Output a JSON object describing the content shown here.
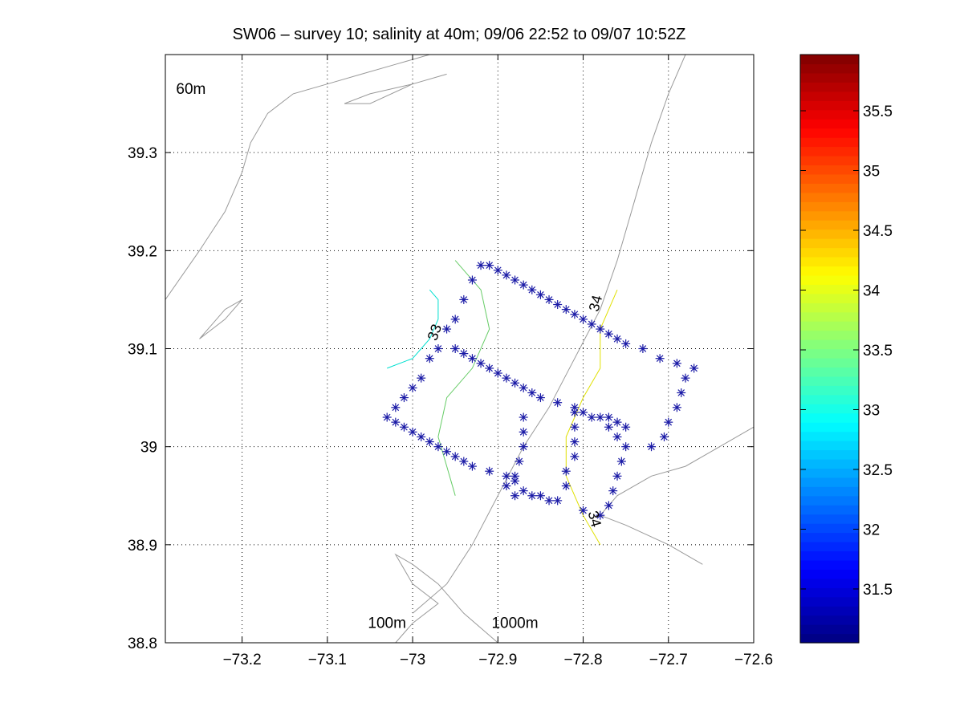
{
  "chart_data": {
    "type": "scatter",
    "title": "SW06 – survey 10; salinity at 40m; 09/06 22:52 to 09/07 10:52Z",
    "xlabel": "",
    "ylabel": "",
    "xlim": [
      -73.29,
      -72.6
    ],
    "ylim": [
      38.8,
      39.4
    ],
    "x_ticks": [
      -73.2,
      -73.1,
      -73.0,
      -72.9,
      -72.8,
      -72.7,
      -72.6
    ],
    "x_tick_labels": [
      "−73.2",
      "−73.1",
      "−73",
      "−72.9",
      "−72.8",
      "−72.7",
      "−72.6"
    ],
    "y_ticks": [
      38.8,
      38.9,
      39.0,
      39.1,
      39.2,
      39.3
    ],
    "y_tick_labels": [
      "38.8",
      "38.9",
      "39",
      "39.1",
      "39.2",
      "39.3"
    ],
    "grid": true,
    "depth_labels": [
      {
        "text": "60m",
        "x": -73.26,
        "y": 39.36
      },
      {
        "text": "100m",
        "x": -73.03,
        "y": 38.815
      },
      {
        "text": "1000m",
        "x": -72.88,
        "y": 38.815
      }
    ],
    "bathymetry": [
      {
        "name": "60m",
        "color": "#999999",
        "points": [
          [
            -73.29,
            39.15
          ],
          [
            -73.25,
            39.2
          ],
          [
            -73.22,
            39.24
          ],
          [
            -73.2,
            39.28
          ],
          [
            -73.19,
            39.31
          ],
          [
            -73.17,
            39.34
          ],
          [
            -73.14,
            39.36
          ],
          [
            -73.1,
            39.37
          ],
          [
            -73.06,
            39.38
          ],
          [
            -73.02,
            39.39
          ],
          [
            -72.98,
            39.4
          ]
        ]
      },
      {
        "name": "60m-shoal-a",
        "color": "#999999",
        "points": [
          [
            -73.25,
            39.11
          ],
          [
            -73.22,
            39.13
          ],
          [
            -73.2,
            39.15
          ],
          [
            -73.22,
            39.14
          ],
          [
            -73.25,
            39.11
          ]
        ]
      },
      {
        "name": "60m-shoal-b",
        "color": "#999999",
        "points": [
          [
            -73.08,
            39.35
          ],
          [
            -73.05,
            39.36
          ],
          [
            -73.0,
            39.37
          ],
          [
            -72.96,
            39.38
          ],
          [
            -73.0,
            39.37
          ],
          [
            -73.05,
            39.35
          ],
          [
            -73.08,
            39.35
          ]
        ]
      },
      {
        "name": "100m",
        "color": "#999999",
        "points": [
          [
            -72.9,
            38.8
          ],
          [
            -72.94,
            38.83
          ],
          [
            -72.97,
            38.86
          ],
          [
            -73.0,
            38.88
          ],
          [
            -73.02,
            38.89
          ],
          [
            -73.0,
            38.86
          ],
          [
            -72.97,
            38.84
          ],
          [
            -73.0,
            38.82
          ],
          [
            -73.02,
            38.8
          ]
        ]
      },
      {
        "name": "1000m",
        "color": "#999999",
        "points": [
          [
            -73.0,
            38.83
          ],
          [
            -72.96,
            38.86
          ],
          [
            -72.93,
            38.9
          ],
          [
            -72.9,
            38.95
          ],
          [
            -72.87,
            39.0
          ],
          [
            -72.84,
            39.04
          ],
          [
            -72.81,
            39.09
          ],
          [
            -72.78,
            39.14
          ],
          [
            -72.76,
            39.19
          ],
          [
            -72.74,
            39.25
          ],
          [
            -72.72,
            39.31
          ],
          [
            -72.7,
            39.36
          ],
          [
            -72.68,
            39.4
          ]
        ]
      },
      {
        "name": "deep",
        "color": "#999999",
        "points": [
          [
            -72.6,
            39.02
          ],
          [
            -72.64,
            39.0
          ],
          [
            -72.68,
            38.98
          ],
          [
            -72.72,
            38.97
          ],
          [
            -72.76,
            38.95
          ],
          [
            -72.78,
            38.93
          ],
          [
            -72.75,
            38.92
          ],
          [
            -72.7,
            38.9
          ],
          [
            -72.66,
            38.88
          ]
        ]
      }
    ],
    "contours": [
      {
        "name": "33",
        "color": "#00e0d0",
        "points": [
          [
            -73.03,
            39.08
          ],
          [
            -73.0,
            39.09
          ],
          [
            -72.98,
            39.11
          ],
          [
            -72.97,
            39.13
          ],
          [
            -72.97,
            39.15
          ],
          [
            -72.98,
            39.16
          ]
        ]
      },
      {
        "name": "33.5",
        "color": "#66cc66",
        "points": [
          [
            -72.95,
            39.19
          ],
          [
            -72.92,
            39.16
          ],
          [
            -72.91,
            39.12
          ],
          [
            -72.93,
            39.08
          ],
          [
            -72.96,
            39.05
          ],
          [
            -72.97,
            39.01
          ],
          [
            -72.96,
            38.98
          ],
          [
            -72.95,
            38.95
          ]
        ]
      },
      {
        "name": "34",
        "color": "#e0e000",
        "points": [
          [
            -72.76,
            39.16
          ],
          [
            -72.78,
            39.12
          ],
          [
            -72.78,
            39.08
          ],
          [
            -72.8,
            39.05
          ],
          [
            -72.82,
            39.01
          ],
          [
            -72.82,
            38.97
          ],
          [
            -72.8,
            38.93
          ],
          [
            -72.78,
            38.9
          ]
        ]
      }
    ],
    "contour_labels": [
      {
        "text": "33",
        "x": -72.969,
        "y": 39.115,
        "color": "#000000"
      },
      {
        "text": "34",
        "x": -72.78,
        "y": 39.145,
        "color": "#000000"
      },
      {
        "text": "34",
        "x": -72.792,
        "y": 38.925,
        "color": "#000000"
      }
    ],
    "stations": [
      [
        -73.03,
        39.03
      ],
      [
        -73.02,
        39.04
      ],
      [
        -73.01,
        39.05
      ],
      [
        -73.0,
        39.06
      ],
      [
        -72.99,
        39.07
      ],
      [
        -72.98,
        39.09
      ],
      [
        -72.97,
        39.1
      ],
      [
        -72.96,
        39.12
      ],
      [
        -72.95,
        39.13
      ],
      [
        -72.94,
        39.15
      ],
      [
        -72.93,
        39.17
      ],
      [
        -72.92,
        39.185
      ],
      [
        -72.91,
        39.185
      ],
      [
        -72.9,
        39.18
      ],
      [
        -72.89,
        39.175
      ],
      [
        -72.88,
        39.17
      ],
      [
        -72.87,
        39.165
      ],
      [
        -72.86,
        39.16
      ],
      [
        -72.85,
        39.155
      ],
      [
        -72.84,
        39.15
      ],
      [
        -72.83,
        39.145
      ],
      [
        -72.82,
        39.14
      ],
      [
        -72.81,
        39.135
      ],
      [
        -72.8,
        39.13
      ],
      [
        -72.79,
        39.125
      ],
      [
        -72.78,
        39.12
      ],
      [
        -72.77,
        39.115
      ],
      [
        -72.76,
        39.11
      ],
      [
        -72.75,
        39.105
      ],
      [
        -72.73,
        39.1
      ],
      [
        -72.71,
        39.09
      ],
      [
        -72.69,
        39.085
      ],
      [
        -72.67,
        39.08
      ],
      [
        -72.68,
        39.07
      ],
      [
        -72.685,
        39.055
      ],
      [
        -72.69,
        39.04
      ],
      [
        -72.7,
        39.025
      ],
      [
        -72.705,
        39.01
      ],
      [
        -72.72,
        39.0
      ],
      [
        -72.95,
        39.1
      ],
      [
        -72.94,
        39.095
      ],
      [
        -72.93,
        39.09
      ],
      [
        -72.92,
        39.085
      ],
      [
        -72.91,
        39.08
      ],
      [
        -72.9,
        39.075
      ],
      [
        -72.89,
        39.07
      ],
      [
        -72.88,
        39.065
      ],
      [
        -72.87,
        39.06
      ],
      [
        -72.86,
        39.055
      ],
      [
        -72.85,
        39.05
      ],
      [
        -72.83,
        39.045
      ],
      [
        -72.81,
        39.04
      ],
      [
        -72.8,
        39.035
      ],
      [
        -72.79,
        39.03
      ],
      [
        -72.78,
        39.03
      ],
      [
        -72.77,
        39.03
      ],
      [
        -72.76,
        39.025
      ],
      [
        -72.75,
        39.02
      ],
      [
        -73.02,
        39.025
      ],
      [
        -73.01,
        39.02
      ],
      [
        -73.0,
        39.015
      ],
      [
        -72.99,
        39.01
      ],
      [
        -72.98,
        39.005
      ],
      [
        -72.97,
        39.0
      ],
      [
        -72.96,
        38.995
      ],
      [
        -72.95,
        38.99
      ],
      [
        -72.94,
        38.985
      ],
      [
        -72.93,
        38.98
      ],
      [
        -72.91,
        38.975
      ],
      [
        -72.89,
        38.97
      ],
      [
        -72.88,
        38.965
      ],
      [
        -72.87,
        39.03
      ],
      [
        -72.87,
        39.015
      ],
      [
        -72.87,
        39.0
      ],
      [
        -72.875,
        38.985
      ],
      [
        -72.88,
        38.97
      ],
      [
        -72.89,
        38.96
      ],
      [
        -72.88,
        38.95
      ],
      [
        -72.87,
        38.955
      ],
      [
        -72.86,
        38.95
      ],
      [
        -72.85,
        38.95
      ],
      [
        -72.84,
        38.945
      ],
      [
        -72.83,
        38.945
      ],
      [
        -72.82,
        38.96
      ],
      [
        -72.82,
        38.975
      ],
      [
        -72.81,
        38.99
      ],
      [
        -72.81,
        39.005
      ],
      [
        -72.81,
        39.02
      ],
      [
        -72.81,
        39.035
      ],
      [
        -72.77,
        39.02
      ],
      [
        -72.76,
        39.01
      ],
      [
        -72.75,
        39.0
      ],
      [
        -72.755,
        38.985
      ],
      [
        -72.76,
        38.97
      ],
      [
        -72.765,
        38.955
      ],
      [
        -72.77,
        38.94
      ],
      [
        -72.78,
        38.93
      ],
      [
        -72.8,
        38.935
      ]
    ],
    "colorbar": {
      "clim": [
        31.05,
        35.97
      ],
      "ticks": [
        31.5,
        32,
        32.5,
        33,
        33.5,
        34,
        34.5,
        35,
        35.5
      ],
      "tick_labels": [
        "31.5",
        "32",
        "32.5",
        "33",
        "33.5",
        "34",
        "34.5",
        "35",
        "35.5"
      ],
      "colormap": "jet"
    }
  }
}
